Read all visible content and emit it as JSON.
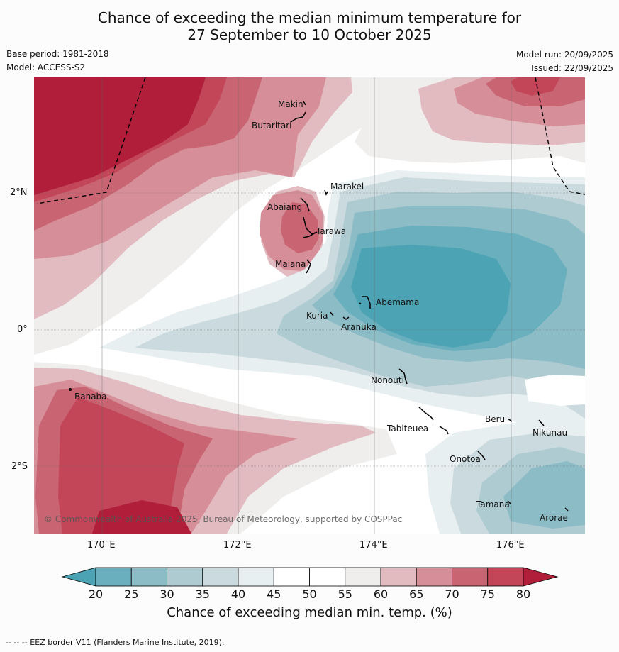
{
  "title": {
    "line1": "Chance of exceeding the median minimum temperature for",
    "line2": "27 September to 10 October 2025"
  },
  "meta": {
    "base_period": "Base period: 1981-2018",
    "model": "Model: ACCESS-S2",
    "model_run": "Model run: 20/09/2025",
    "issued": "Issued: 22/09/2025"
  },
  "axes": {
    "lon_labels": [
      "170°E",
      "172°E",
      "174°E",
      "176°E"
    ],
    "lat_labels": [
      "2°N",
      "0°",
      "2°S"
    ]
  },
  "places": [
    {
      "name": "Makin",
      "id": "makin"
    },
    {
      "name": "Butaritari",
      "id": "butaritari"
    },
    {
      "name": "Marakei",
      "id": "marakei"
    },
    {
      "name": "Abaiang",
      "id": "abaiang"
    },
    {
      "name": "Tarawa",
      "id": "tarawa"
    },
    {
      "name": "Maiana",
      "id": "maiana"
    },
    {
      "name": "Abemama",
      "id": "abemama"
    },
    {
      "name": "Kuria",
      "id": "kuria"
    },
    {
      "name": "Aranuka",
      "id": "aranuka"
    },
    {
      "name": "Nonouti",
      "id": "nonouti"
    },
    {
      "name": "Banaba",
      "id": "banaba"
    },
    {
      "name": "Beru",
      "id": "beru"
    },
    {
      "name": "Tabiteuea",
      "id": "tabiteuea"
    },
    {
      "name": "Nikunau",
      "id": "nikunau"
    },
    {
      "name": "Onotoa",
      "id": "onotoa"
    },
    {
      "name": "Tamana",
      "id": "tamana"
    },
    {
      "name": "Arorae",
      "id": "arorae"
    }
  ],
  "copyright": "© Commonwealth of Australia 2025, Bureau of Meteorology, supported by COSPPac",
  "colorbar": {
    "ticks": [
      "20",
      "25",
      "30",
      "35",
      "40",
      "45",
      "50",
      "55",
      "60",
      "65",
      "70",
      "75",
      "80"
    ],
    "colors": [
      "#4ba3b3",
      "#6aafbd",
      "#8cbcc6",
      "#adcbd1",
      "#cbdade",
      "#e8eff1",
      "#ffffff",
      "#ffffff",
      "#efeeed",
      "#e2bbc1",
      "#d68f98",
      "#c96472",
      "#c24658",
      "#b01e3a"
    ],
    "label": "Chance of exceeding median min. temp. (%)"
  },
  "footer": "--  --  -- EEZ border V11 (Flanders Marine Institute, 2019)."
}
